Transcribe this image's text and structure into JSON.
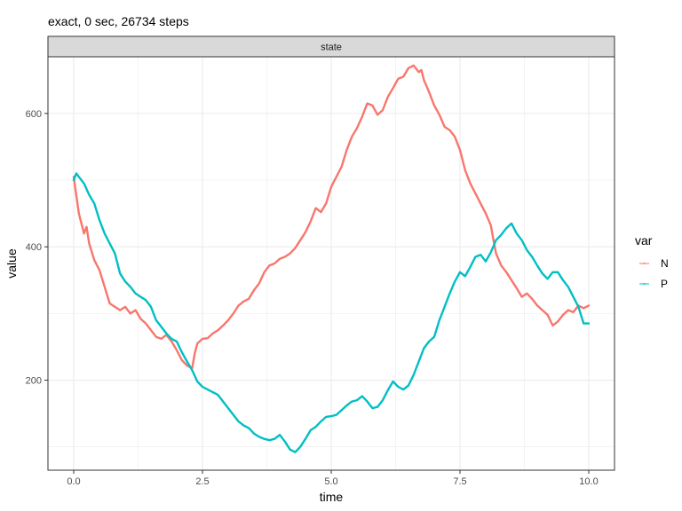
{
  "chart_data": {
    "type": "line",
    "title": "exact, 0 sec, 26734 steps",
    "facet_label": "state",
    "xlabel": "time",
    "ylabel": "value",
    "xlim": [
      -0.5,
      10.5
    ],
    "ylim": [
      65,
      685
    ],
    "x_ticks": [
      0.0,
      2.5,
      5.0,
      7.5,
      10.0
    ],
    "x_tick_labels": [
      "0.0",
      "2.5",
      "5.0",
      "7.5",
      "10.0"
    ],
    "y_ticks": [
      200,
      400,
      600
    ],
    "y_tick_labels": [
      "200",
      "400",
      "600"
    ],
    "grid": true,
    "legend": {
      "title": "var",
      "position": "right"
    },
    "series": [
      {
        "name": "N",
        "color": "#F8766D",
        "points": [
          [
            0.0,
            505
          ],
          [
            0.1,
            450
          ],
          [
            0.2,
            420
          ],
          [
            0.25,
            430
          ],
          [
            0.3,
            405
          ],
          [
            0.4,
            380
          ],
          [
            0.5,
            365
          ],
          [
            0.6,
            340
          ],
          [
            0.7,
            315
          ],
          [
            0.8,
            310
          ],
          [
            0.9,
            305
          ],
          [
            1.0,
            310
          ],
          [
            1.1,
            300
          ],
          [
            1.2,
            305
          ],
          [
            1.3,
            292
          ],
          [
            1.4,
            285
          ],
          [
            1.5,
            275
          ],
          [
            1.6,
            265
          ],
          [
            1.7,
            262
          ],
          [
            1.8,
            268
          ],
          [
            1.9,
            258
          ],
          [
            2.0,
            245
          ],
          [
            2.1,
            230
          ],
          [
            2.2,
            222
          ],
          [
            2.3,
            218
          ],
          [
            2.35,
            240
          ],
          [
            2.4,
            255
          ],
          [
            2.5,
            262
          ],
          [
            2.6,
            263
          ],
          [
            2.7,
            270
          ],
          [
            2.8,
            275
          ],
          [
            2.9,
            282
          ],
          [
            3.0,
            290
          ],
          [
            3.1,
            300
          ],
          [
            3.2,
            312
          ],
          [
            3.3,
            318
          ],
          [
            3.4,
            322
          ],
          [
            3.5,
            335
          ],
          [
            3.6,
            345
          ],
          [
            3.7,
            362
          ],
          [
            3.8,
            372
          ],
          [
            3.9,
            375
          ],
          [
            4.0,
            382
          ],
          [
            4.1,
            385
          ],
          [
            4.2,
            390
          ],
          [
            4.3,
            398
          ],
          [
            4.4,
            410
          ],
          [
            4.5,
            422
          ],
          [
            4.6,
            438
          ],
          [
            4.7,
            458
          ],
          [
            4.8,
            452
          ],
          [
            4.9,
            465
          ],
          [
            5.0,
            490
          ],
          [
            5.1,
            505
          ],
          [
            5.2,
            520
          ],
          [
            5.3,
            545
          ],
          [
            5.4,
            565
          ],
          [
            5.5,
            578
          ],
          [
            5.6,
            595
          ],
          [
            5.7,
            615
          ],
          [
            5.8,
            612
          ],
          [
            5.9,
            598
          ],
          [
            6.0,
            605
          ],
          [
            6.1,
            625
          ],
          [
            6.2,
            638
          ],
          [
            6.3,
            652
          ],
          [
            6.4,
            655
          ],
          [
            6.5,
            668
          ],
          [
            6.6,
            672
          ],
          [
            6.7,
            662
          ],
          [
            6.75,
            665
          ],
          [
            6.8,
            650
          ],
          [
            6.9,
            632
          ],
          [
            7.0,
            612
          ],
          [
            7.1,
            598
          ],
          [
            7.2,
            580
          ],
          [
            7.3,
            575
          ],
          [
            7.4,
            565
          ],
          [
            7.5,
            545
          ],
          [
            7.6,
            515
          ],
          [
            7.7,
            495
          ],
          [
            7.8,
            480
          ],
          [
            7.9,
            465
          ],
          [
            8.0,
            450
          ],
          [
            8.1,
            432
          ],
          [
            8.15,
            410
          ],
          [
            8.2,
            390
          ],
          [
            8.3,
            372
          ],
          [
            8.4,
            362
          ],
          [
            8.5,
            350
          ],
          [
            8.6,
            338
          ],
          [
            8.7,
            325
          ],
          [
            8.8,
            330
          ],
          [
            8.9,
            322
          ],
          [
            9.0,
            312
          ],
          [
            9.1,
            305
          ],
          [
            9.2,
            298
          ],
          [
            9.3,
            282
          ],
          [
            9.4,
            288
          ],
          [
            9.5,
            298
          ],
          [
            9.6,
            305
          ],
          [
            9.7,
            302
          ],
          [
            9.8,
            312
          ],
          [
            9.9,
            308
          ],
          [
            10.0,
            312
          ]
        ]
      },
      {
        "name": "P",
        "color": "#00BFC4",
        "points": [
          [
            0.0,
            500
          ],
          [
            0.05,
            510
          ],
          [
            0.1,
            505
          ],
          [
            0.2,
            495
          ],
          [
            0.3,
            478
          ],
          [
            0.4,
            465
          ],
          [
            0.5,
            440
          ],
          [
            0.6,
            420
          ],
          [
            0.7,
            405
          ],
          [
            0.8,
            390
          ],
          [
            0.9,
            360
          ],
          [
            1.0,
            348
          ],
          [
            1.1,
            340
          ],
          [
            1.2,
            330
          ],
          [
            1.3,
            325
          ],
          [
            1.4,
            320
          ],
          [
            1.5,
            310
          ],
          [
            1.6,
            290
          ],
          [
            1.7,
            280
          ],
          [
            1.8,
            270
          ],
          [
            1.9,
            262
          ],
          [
            2.0,
            258
          ],
          [
            2.1,
            242
          ],
          [
            2.2,
            228
          ],
          [
            2.3,
            215
          ],
          [
            2.4,
            198
          ],
          [
            2.5,
            190
          ],
          [
            2.6,
            186
          ],
          [
            2.7,
            182
          ],
          [
            2.8,
            178
          ],
          [
            2.9,
            168
          ],
          [
            3.0,
            158
          ],
          [
            3.1,
            148
          ],
          [
            3.2,
            138
          ],
          [
            3.3,
            132
          ],
          [
            3.4,
            128
          ],
          [
            3.5,
            120
          ],
          [
            3.6,
            115
          ],
          [
            3.7,
            112
          ],
          [
            3.8,
            110
          ],
          [
            3.9,
            112
          ],
          [
            4.0,
            118
          ],
          [
            4.1,
            108
          ],
          [
            4.2,
            96
          ],
          [
            4.3,
            92
          ],
          [
            4.4,
            100
          ],
          [
            4.5,
            112
          ],
          [
            4.6,
            125
          ],
          [
            4.7,
            130
          ],
          [
            4.8,
            138
          ],
          [
            4.9,
            145
          ],
          [
            5.0,
            146
          ],
          [
            5.1,
            148
          ],
          [
            5.2,
            155
          ],
          [
            5.3,
            162
          ],
          [
            5.4,
            168
          ],
          [
            5.5,
            170
          ],
          [
            5.6,
            176
          ],
          [
            5.7,
            168
          ],
          [
            5.8,
            158
          ],
          [
            5.9,
            160
          ],
          [
            6.0,
            170
          ],
          [
            6.1,
            185
          ],
          [
            6.2,
            198
          ],
          [
            6.3,
            190
          ],
          [
            6.4,
            186
          ],
          [
            6.5,
            192
          ],
          [
            6.6,
            208
          ],
          [
            6.7,
            228
          ],
          [
            6.8,
            248
          ],
          [
            6.9,
            258
          ],
          [
            7.0,
            265
          ],
          [
            7.1,
            290
          ],
          [
            7.2,
            310
          ],
          [
            7.3,
            330
          ],
          [
            7.4,
            348
          ],
          [
            7.5,
            362
          ],
          [
            7.6,
            356
          ],
          [
            7.7,
            370
          ],
          [
            7.8,
            385
          ],
          [
            7.9,
            388
          ],
          [
            8.0,
            378
          ],
          [
            8.1,
            392
          ],
          [
            8.2,
            410
          ],
          [
            8.3,
            418
          ],
          [
            8.4,
            428
          ],
          [
            8.5,
            435
          ],
          [
            8.6,
            420
          ],
          [
            8.7,
            410
          ],
          [
            8.8,
            395
          ],
          [
            8.9,
            385
          ],
          [
            9.0,
            372
          ],
          [
            9.1,
            360
          ],
          [
            9.2,
            352
          ],
          [
            9.3,
            362
          ],
          [
            9.4,
            362
          ],
          [
            9.5,
            350
          ],
          [
            9.6,
            340
          ],
          [
            9.7,
            325
          ],
          [
            9.8,
            310
          ],
          [
            9.9,
            285
          ],
          [
            10.0,
            285
          ]
        ]
      }
    ]
  }
}
